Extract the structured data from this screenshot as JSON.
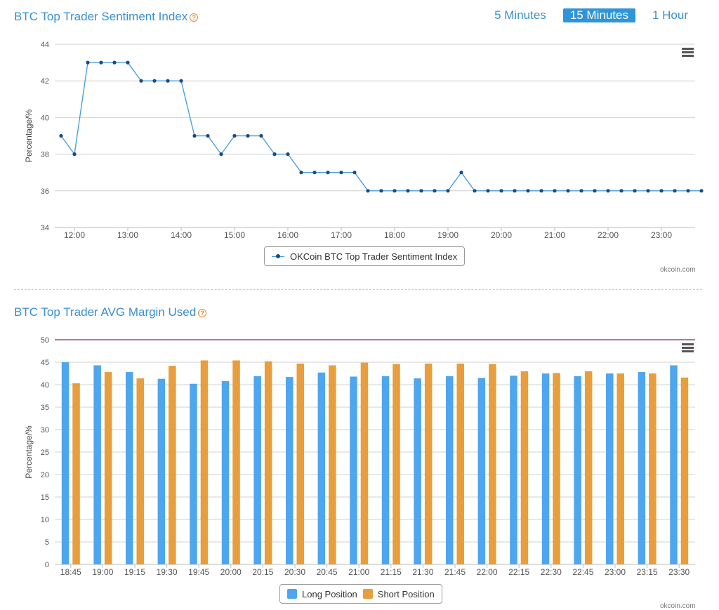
{
  "panel1": {
    "title": "BTC Top Trader Sentiment Index",
    "help_icon": "help-circle-icon",
    "intervals": [
      "5 Minutes",
      "15 Minutes",
      "1 Hour"
    ],
    "active_interval": "15 Minutes",
    "credit": "okcoin.com"
  },
  "panel2": {
    "title": "BTC Top Trader AVG Margin Used",
    "help_icon": "help-circle-icon",
    "credit": "okcoin.com"
  },
  "colors": {
    "line": "#4aa0e0",
    "marker": "#1d4a7e",
    "long": "#4da6ee",
    "short": "#e89e3c",
    "threshold": "#7b2a6e",
    "title": "#3a8fd0"
  },
  "chart_data": [
    {
      "type": "line",
      "title": "",
      "ylabel": "Percentage/%",
      "ylim": [
        34,
        44
      ],
      "yticks": [
        "34",
        "36",
        "38",
        "40",
        "42",
        "44"
      ],
      "xticks": [
        "12:00",
        "13:00",
        "14:00",
        "15:00",
        "16:00",
        "17:00",
        "18:00",
        "19:00",
        "20:00",
        "21:00",
        "22:00",
        "23:00"
      ],
      "legend": "bottom-center",
      "grid": true,
      "series": [
        {
          "name": "OKCoin BTC Top Trader Sentiment Index",
          "start": "11:45",
          "interval_minutes": 15,
          "values": [
            39,
            38,
            43,
            43,
            43,
            43,
            42,
            42,
            42,
            42,
            39,
            39,
            38,
            39,
            39,
            39,
            38,
            38,
            37,
            37,
            37,
            37,
            37,
            36,
            36,
            36,
            36,
            36,
            36,
            36,
            37,
            36,
            36,
            36,
            36,
            36,
            36,
            36,
            36,
            36,
            36,
            36,
            36,
            36,
            36,
            36,
            36,
            36,
            36
          ]
        }
      ]
    },
    {
      "type": "bar",
      "title": "",
      "ylabel": "Percentage/%",
      "ylim": [
        0,
        50
      ],
      "yticks": [
        "0",
        "5",
        "10",
        "15",
        "20",
        "25",
        "30",
        "35",
        "40",
        "45",
        "50"
      ],
      "threshold": 50,
      "legend": "bottom-center",
      "grid": true,
      "categories": [
        "18:45",
        "19:00",
        "19:15",
        "19:30",
        "19:45",
        "20:00",
        "20:15",
        "20:30",
        "20:45",
        "21:00",
        "21:15",
        "21:30",
        "21:45",
        "22:00",
        "22:15",
        "22:30",
        "22:45",
        "23:00",
        "23:15",
        "23:30"
      ],
      "series": [
        {
          "name": "Long Position",
          "values": [
            45.0,
            44.3,
            42.8,
            41.3,
            40.2,
            40.8,
            41.9,
            41.7,
            42.7,
            41.8,
            41.9,
            41.4,
            41.9,
            41.5,
            42.0,
            42.5,
            41.9,
            42.5,
            42.8,
            44.3
          ]
        },
        {
          "name": "Short Position",
          "values": [
            40.3,
            42.8,
            41.4,
            44.2,
            45.4,
            45.4,
            45.2,
            44.7,
            44.3,
            44.9,
            44.6,
            44.7,
            44.7,
            44.6,
            43.0,
            42.6,
            43.0,
            42.5,
            42.5,
            41.6
          ]
        }
      ]
    }
  ]
}
